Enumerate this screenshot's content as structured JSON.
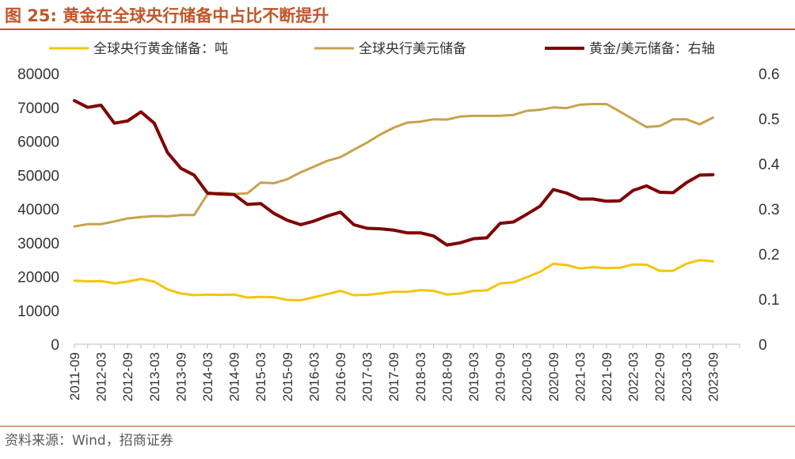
{
  "figure": {
    "title": "图 25:  黄金在全球央行储备中占比不断提升",
    "source": "资料来源：Wind，招商证券"
  },
  "colors": {
    "gold_tonnes": "#f5c40f",
    "usd_reserves": "#c7a24c",
    "ratio": "#800000",
    "accent": "#c0562a",
    "axis": "#bfbfbf"
  },
  "chart_data": {
    "type": "line",
    "x": [
      "2011-09",
      "2011-12",
      "2012-03",
      "2012-06",
      "2012-09",
      "2012-12",
      "2013-03",
      "2013-06",
      "2013-09",
      "2013-12",
      "2014-03",
      "2014-06",
      "2014-09",
      "2014-12",
      "2015-03",
      "2015-06",
      "2015-09",
      "2015-12",
      "2016-03",
      "2016-06",
      "2016-09",
      "2016-12",
      "2017-03",
      "2017-06",
      "2017-09",
      "2017-12",
      "2018-03",
      "2018-06",
      "2018-09",
      "2018-12",
      "2019-03",
      "2019-06",
      "2019-09",
      "2019-12",
      "2020-03",
      "2020-06",
      "2020-09",
      "2020-12",
      "2021-03",
      "2021-06",
      "2021-09",
      "2021-12",
      "2022-03",
      "2022-06",
      "2022-09",
      "2022-12",
      "2023-03",
      "2023-06",
      "2023-09",
      "2023-12"
    ],
    "xtick_labels": [
      "2011-09",
      "2012-03",
      "2012-09",
      "2013-03",
      "2013-09",
      "2014-03",
      "2014-09",
      "2015-03",
      "2015-09",
      "2016-03",
      "2016-09",
      "2017-03",
      "2017-09",
      "2018-03",
      "2018-09",
      "2019-03",
      "2019-09",
      "2020-03",
      "2020-09",
      "2021-03",
      "2021-09",
      "2022-03",
      "2022-09",
      "2023-03",
      "2023-09"
    ],
    "y_left": {
      "lim": [
        0,
        80000
      ],
      "ticks": [
        0,
        10000,
        20000,
        30000,
        40000,
        50000,
        60000,
        70000,
        80000
      ]
    },
    "y_right": {
      "lim": [
        0,
        0.6
      ],
      "ticks": [
        0,
        0.1,
        0.2,
        0.3,
        0.4,
        0.5,
        0.6
      ]
    },
    "legend_position": "top",
    "grid": false,
    "series": [
      {
        "name": "全球央行黄金储备：吨",
        "axis": "left",
        "values": [
          18800,
          18600,
          18700,
          18000,
          18500,
          19300,
          18500,
          16200,
          15000,
          14500,
          14700,
          14600,
          14700,
          13800,
          14000,
          13900,
          13100,
          13000,
          13900,
          14800,
          15800,
          14500,
          14600,
          15000,
          15500,
          15500,
          16000,
          15800,
          14700,
          15000,
          15800,
          15900,
          18000,
          18300,
          19800,
          21400,
          23800,
          23400,
          22400,
          22800,
          22500,
          22600,
          23600,
          23500,
          21700,
          21700,
          23800,
          24900,
          24500,
          null
        ]
      },
      {
        "name": "全球央行美元储备",
        "axis": "left",
        "values": [
          34800,
          35500,
          35500,
          36300,
          37200,
          37600,
          37900,
          37800,
          38200,
          38200,
          44300,
          44800,
          44400,
          44600,
          47800,
          47600,
          48800,
          50800,
          52500,
          54200,
          55300,
          57500,
          59600,
          62000,
          64000,
          65500,
          65800,
          66500,
          66400,
          67300,
          67500,
          67500,
          67500,
          67800,
          69000,
          69300,
          70000,
          69800,
          70800,
          71000,
          71000,
          68800,
          66500,
          64200,
          64500,
          66500,
          66500,
          65000,
          67000,
          null
        ]
      },
      {
        "name": "黄金/美元储备：右轴",
        "axis": "right",
        "values": [
          0.54,
          0.525,
          0.53,
          0.49,
          0.495,
          0.515,
          0.49,
          0.425,
          0.39,
          0.375,
          0.335,
          0.333,
          0.332,
          0.31,
          0.312,
          0.29,
          0.275,
          0.265,
          0.273,
          0.284,
          0.293,
          0.265,
          0.257,
          0.256,
          0.253,
          0.247,
          0.247,
          0.24,
          0.22,
          0.225,
          0.234,
          0.236,
          0.268,
          0.271,
          0.288,
          0.306,
          0.343,
          0.335,
          0.322,
          0.322,
          0.317,
          0.318,
          0.341,
          0.351,
          0.337,
          0.336,
          0.358,
          0.375,
          0.376,
          null
        ]
      }
    ]
  }
}
